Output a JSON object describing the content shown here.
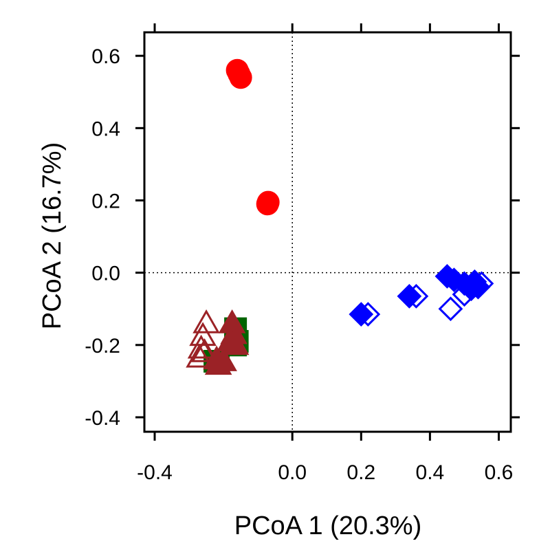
{
  "chart_data": {
    "type": "scatter",
    "title": "",
    "xlabel": "PCoA 1 (20.3%)",
    "ylabel": "PCoA 2 (16.7%)",
    "xlim": [
      -0.43,
      0.635
    ],
    "ylim": [
      -0.44,
      0.665
    ],
    "xticks": [
      -0.4,
      0.0,
      0.2,
      0.4,
      0.6
    ],
    "xtick_labels": [
      "-0.4",
      "0.0",
      "0.2",
      "0.4",
      "0.6"
    ],
    "yticks": [
      -0.4,
      -0.2,
      0.0,
      0.2,
      0.4,
      0.6
    ],
    "ytick_labels": [
      "-0.4",
      "-0.2",
      "0.0",
      "0.2",
      "0.4",
      "0.6"
    ],
    "reference_lines": {
      "x": 0,
      "y": 0,
      "style": "dotted"
    },
    "grid": false,
    "legend": "none",
    "series": [
      {
        "marker": "circle",
        "filled": true,
        "color": "#ff0000",
        "points": [
          [
            -0.16,
            0.56
          ],
          [
            -0.155,
            0.55
          ],
          [
            -0.15,
            0.54
          ],
          [
            -0.07,
            0.195
          ],
          [
            -0.072,
            0.19
          ]
        ]
      },
      {
        "marker": "square",
        "filled": true,
        "color": "#006400",
        "points": [
          [
            -0.165,
            -0.155
          ],
          [
            -0.16,
            -0.19
          ],
          [
            -0.165,
            -0.2
          ],
          [
            -0.225,
            -0.245
          ],
          [
            -0.215,
            -0.25
          ]
        ]
      },
      {
        "marker": "triangle",
        "filled": false,
        "color": "#9b2226",
        "points": [
          [
            -0.25,
            -0.14
          ],
          [
            -0.26,
            -0.175
          ],
          [
            -0.265,
            -0.21
          ],
          [
            -0.27,
            -0.235
          ],
          [
            -0.255,
            -0.22
          ]
        ]
      },
      {
        "marker": "triangle",
        "filled": true,
        "color": "#9b2226",
        "points": [
          [
            -0.175,
            -0.14
          ],
          [
            -0.17,
            -0.17
          ],
          [
            -0.18,
            -0.19
          ],
          [
            -0.165,
            -0.2
          ],
          [
            -0.22,
            -0.24
          ],
          [
            -0.215,
            -0.255
          ],
          [
            -0.2,
            -0.245
          ]
        ]
      },
      {
        "marker": "diamond",
        "filled": false,
        "color": "#0000ff",
        "points": [
          [
            0.22,
            -0.115
          ],
          [
            0.36,
            -0.065
          ],
          [
            0.46,
            -0.1
          ],
          [
            0.5,
            -0.06
          ],
          [
            0.55,
            -0.03
          ]
        ]
      },
      {
        "marker": "diamond",
        "filled": true,
        "color": "#0000ff",
        "points": [
          [
            0.2,
            -0.115
          ],
          [
            0.34,
            -0.065
          ],
          [
            0.45,
            -0.01
          ],
          [
            0.47,
            -0.02
          ],
          [
            0.5,
            -0.03
          ],
          [
            0.52,
            -0.045
          ],
          [
            0.53,
            -0.025
          ],
          [
            0.54,
            -0.04
          ]
        ]
      }
    ]
  }
}
